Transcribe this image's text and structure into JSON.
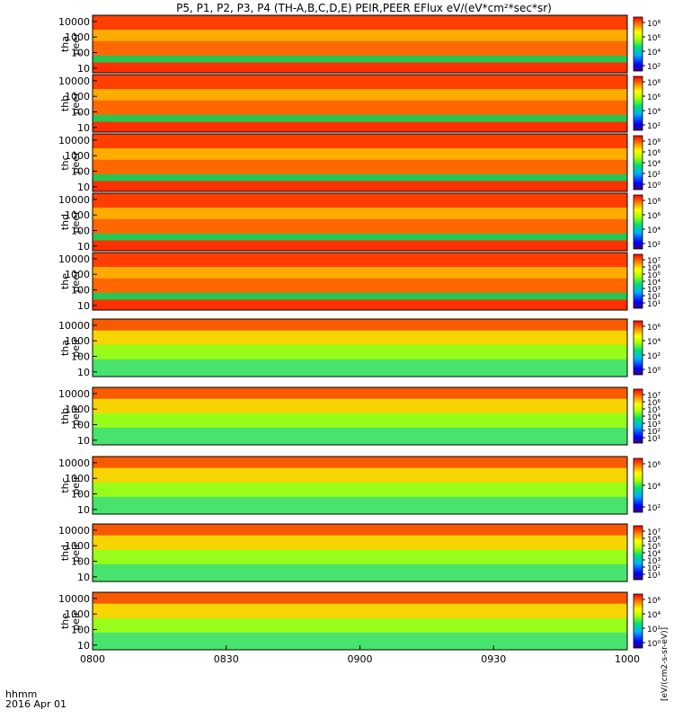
{
  "title": "P5, P1, P2, P3, P4 (TH-A,B,C,D,E) PEIR,PEER EFlux eV/(eV*cm²*sec*sr)",
  "footer": {
    "label1": "hhmm",
    "label2": "2016 Apr 01"
  },
  "colorbar_unit_label": "[eV/(cm2-s-sr-eV)]",
  "chart_data": {
    "type": "heatmap",
    "xaxis": {
      "ticks": [
        "0800",
        "0830",
        "0900",
        "0930",
        "1000"
      ],
      "range": [
        "08:00",
        "10:00"
      ]
    },
    "yaxis": {
      "scale": "log",
      "range": [
        5,
        25000
      ],
      "ticks": [
        "10",
        "100",
        "1000",
        "10000"
      ]
    },
    "panels": [
      {
        "probe": "tha",
        "species": "peer",
        "cbar_ticks": [
          "10⁸",
          "10⁶",
          "10⁴",
          "10²"
        ]
      },
      {
        "probe": "thb",
        "species": "peer",
        "cbar_ticks": [
          "10⁸",
          "10⁶",
          "10⁴",
          "10²"
        ]
      },
      {
        "probe": "thc",
        "species": "peer",
        "cbar_ticks": [
          "10⁸",
          "10⁶",
          "10⁴",
          "10²",
          "10⁰"
        ]
      },
      {
        "probe": "thd",
        "species": "peer",
        "cbar_ticks": [
          "10⁸",
          "10⁶",
          "10⁴",
          "10²"
        ]
      },
      {
        "probe": "the",
        "species": "peer",
        "cbar_ticks": [
          "10⁷",
          "10⁶",
          "10⁵",
          "10⁴",
          "10³",
          "10²",
          "10¹"
        ]
      },
      {
        "probe": "tha",
        "species": "peir",
        "cbar_ticks": [
          "10⁶",
          "10⁴",
          "10²",
          "10⁰"
        ]
      },
      {
        "probe": "thb",
        "species": "peir",
        "cbar_ticks": [
          "10⁷",
          "10⁶",
          "10⁵",
          "10⁴",
          "10³",
          "10²",
          "10¹"
        ]
      },
      {
        "probe": "thc",
        "species": "peir",
        "cbar_ticks": [
          "10⁶",
          "10⁴",
          "10²"
        ]
      },
      {
        "probe": "thd",
        "species": "peir",
        "cbar_ticks": [
          "10⁷",
          "10⁶",
          "10⁵",
          "10⁴",
          "10³",
          "10²",
          "10¹"
        ]
      },
      {
        "probe": "the",
        "species": "peir",
        "cbar_ticks": [
          "10⁶",
          "10⁴",
          "10²",
          "10⁰"
        ]
      }
    ]
  }
}
